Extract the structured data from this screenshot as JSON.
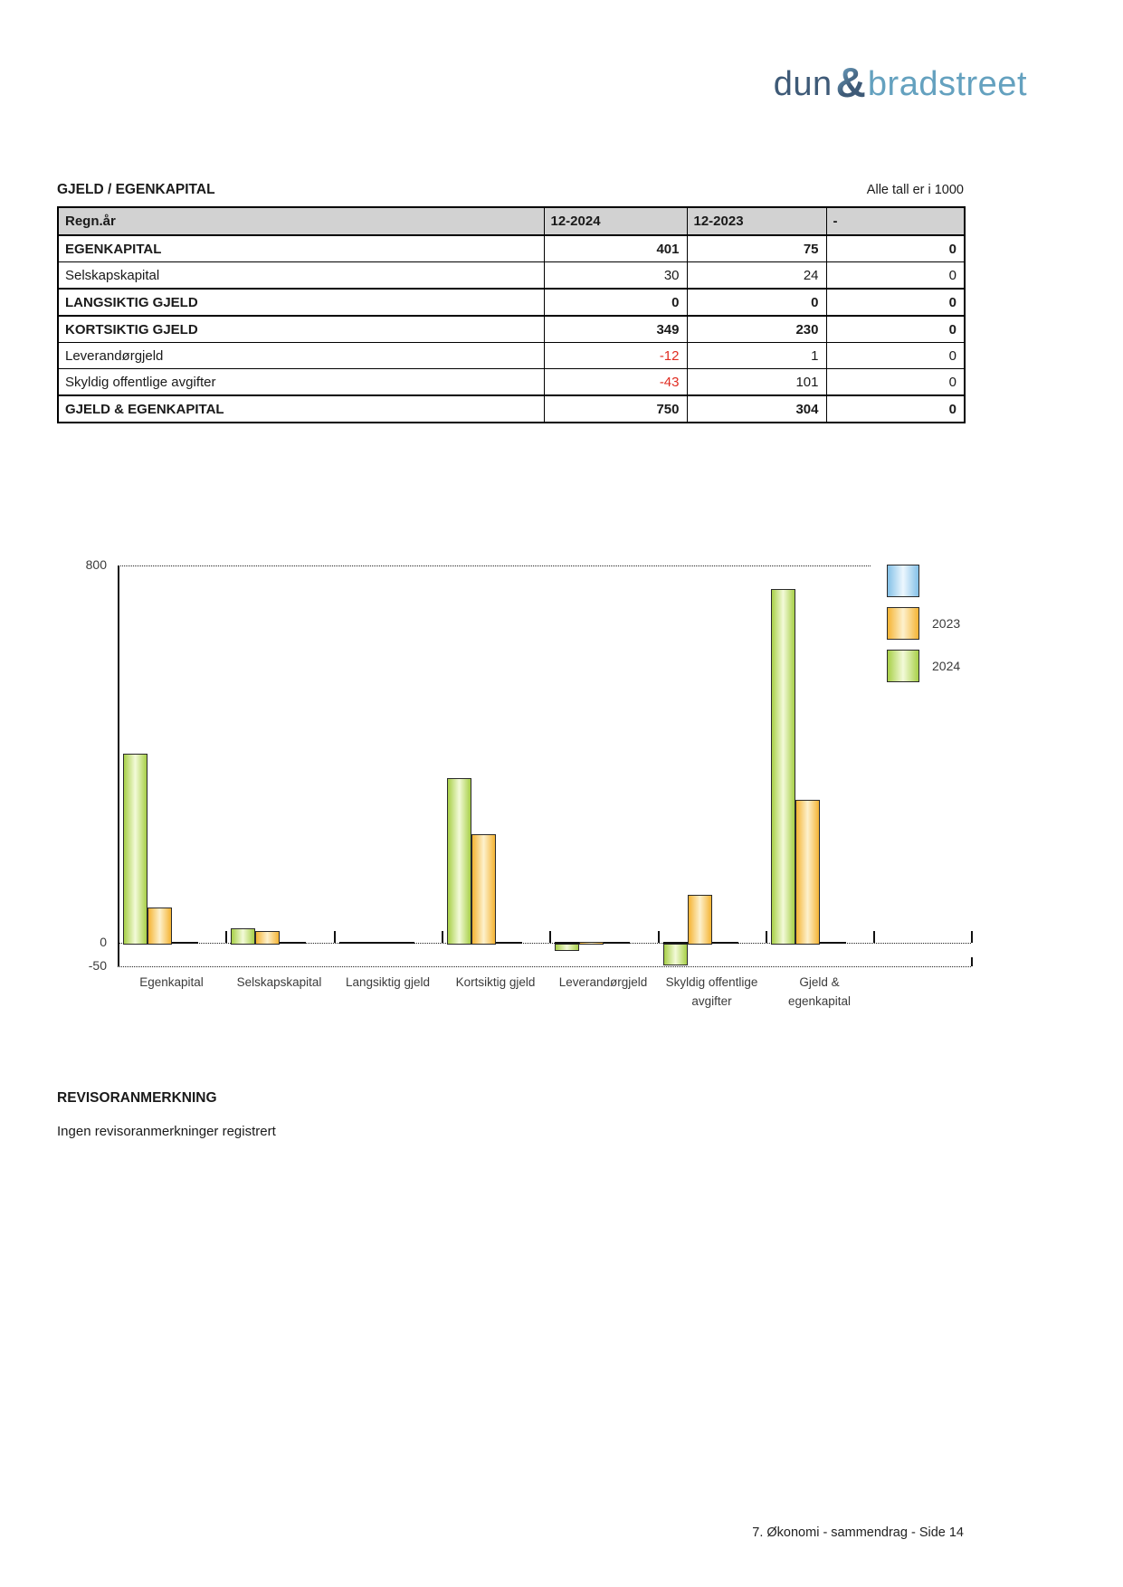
{
  "page": {
    "logo": {
      "part1": "dun",
      "amp": "&",
      "part2": "bradstreet"
    },
    "section_title": "GJELD / EGENKAPITAL",
    "units_note": "Alle tall er i 1000",
    "table": {
      "columns": [
        "Regn.år",
        "12-2024",
        "12-2023",
        "-"
      ],
      "rows": [
        {
          "label": "EGENKAPITAL",
          "bold": true,
          "values": [
            "401",
            "75",
            "0"
          ]
        },
        {
          "label": "Selskapskapital",
          "bold": false,
          "values": [
            "30",
            "24",
            "0"
          ]
        },
        {
          "label": "LANGSIKTIG GJELD",
          "bold": true,
          "values": [
            "0",
            "0",
            "0"
          ]
        },
        {
          "label": "KORTSIKTIG GJELD",
          "bold": true,
          "values": [
            "349",
            "230",
            "0"
          ]
        },
        {
          "label": "Leverandørgjeld",
          "bold": false,
          "values": [
            "-12",
            "1",
            "0"
          ]
        },
        {
          "label": "Skyldig offentlige avgifter",
          "bold": false,
          "values": [
            "-43",
            "101",
            "0"
          ]
        },
        {
          "label": "GJELD & EGENKAPITAL",
          "bold": true,
          "values": [
            "750",
            "304",
            "0"
          ]
        }
      ],
      "negative_color": "#e02b20"
    },
    "revisor": {
      "heading": "REVISORANMERKNING",
      "text": "Ingen revisoranmerkninger registrert"
    },
    "footer": "7. Økonomi - sammendrag - Side 14"
  },
  "chart_data": {
    "type": "bar",
    "categories": [
      "Egenkapital",
      "Selskapskapital",
      "Langsiktig gjeld",
      "Kortsiktig gjeld",
      "Leverandørgjeld",
      "Skyldig offentlige avgifter",
      "Gjeld & egenkapital"
    ],
    "category_lines": [
      [
        "Egenkapital"
      ],
      [
        "Selskapskapital"
      ],
      [
        "Langsiktig gjeld"
      ],
      [
        "Kortsiktig gjeld"
      ],
      [
        "Leverandørgjeld"
      ],
      [
        "Skyldig offentlige",
        "avgifter"
      ],
      [
        "Gjeld &",
        "egenkapital"
      ]
    ],
    "series": [
      {
        "name": "2024",
        "color_edge": "#a8d048",
        "color_center": "#f3fad9",
        "values": [
          401,
          30,
          0,
          349,
          -12,
          -43,
          750
        ]
      },
      {
        "name": "2023",
        "color_edge": "#f5b434",
        "color_center": "#fdf1cd",
        "values": [
          75,
          24,
          0,
          230,
          1,
          101,
          304
        ]
      }
    ],
    "legend": [
      {
        "label": "",
        "color_edge": "#84c1e8",
        "color_center": "#edf7fe"
      },
      {
        "label": "2023",
        "color_edge": "#f5b434",
        "color_center": "#fdf1cd"
      },
      {
        "label": "2024",
        "color_edge": "#a8d048",
        "color_center": "#f3fad9"
      }
    ],
    "ylim": [
      -50,
      800
    ],
    "yticks_display": [
      "800",
      "0",
      "-50"
    ],
    "grid": "dotted-at-800-0-and-minus50",
    "legend_position": "right",
    "xlabel": "",
    "ylabel": ""
  }
}
